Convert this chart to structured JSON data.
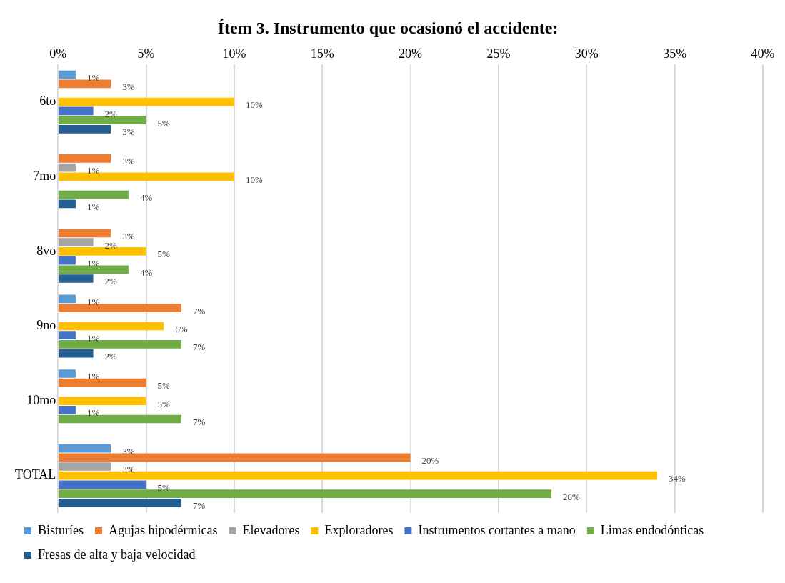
{
  "chart_data": {
    "type": "bar",
    "orientation": "horizontal",
    "title": "Ítem 3. Instrumento que ocasionó el accidente:",
    "categories": [
      "6to",
      "7mo",
      "8vo",
      "9no",
      "10mo",
      "TOTAL"
    ],
    "series": [
      {
        "name": "Bisturíes",
        "color": "#5b9bd5",
        "values": [
          1,
          null,
          null,
          1,
          1,
          3
        ],
        "value_labels": [
          "1%",
          null,
          null,
          "1%",
          "1%",
          "3%"
        ]
      },
      {
        "name": "Agujas hipodérmicas",
        "color": "#ed7d31",
        "values": [
          3,
          3,
          3,
          7,
          5,
          20
        ],
        "value_labels": [
          "3%",
          "3%",
          "3%",
          "7%",
          "5%",
          "20%"
        ]
      },
      {
        "name": "Elevadores",
        "color": "#a5a5a5",
        "values": [
          null,
          1,
          2,
          null,
          null,
          3
        ],
        "value_labels": [
          null,
          "1%",
          "2%",
          null,
          null,
          "3%"
        ]
      },
      {
        "name": "Exploradores",
        "color": "#ffc000",
        "values": [
          10,
          10,
          5,
          6,
          5,
          34
        ],
        "value_labels": [
          "10%",
          "10%",
          "5%",
          "6%",
          "5%",
          "34%"
        ]
      },
      {
        "name": "Instrumentos cortantes a mano",
        "color": "#4472c4",
        "values": [
          2,
          null,
          1,
          1,
          1,
          5
        ],
        "value_labels": [
          "2%",
          null,
          "1%",
          "1%",
          "1%",
          "5%"
        ]
      },
      {
        "name": "Limas endodónticas",
        "color": "#70ad47",
        "values": [
          5,
          4,
          4,
          7,
          7,
          28
        ],
        "value_labels": [
          "5%",
          "4%",
          "4%",
          "7%",
          "7%",
          "28%"
        ]
      },
      {
        "name": "Fresas de alta y baja velocidad",
        "color": "#255e91",
        "values": [
          3,
          1,
          2,
          2,
          null,
          7
        ],
        "value_labels": [
          "3%",
          "1%",
          "2%",
          "2%",
          null,
          "7%"
        ]
      }
    ],
    "xlim": [
      0,
      40
    ],
    "xticks": [
      {
        "value": 0,
        "label": "0%"
      },
      {
        "value": 5,
        "label": "5%"
      },
      {
        "value": 10,
        "label": "10%"
      },
      {
        "value": 15,
        "label": "15%"
      },
      {
        "value": 20,
        "label": "20%"
      },
      {
        "value": 25,
        "label": "25%"
      },
      {
        "value": 30,
        "label": "30%"
      },
      {
        "value": 35,
        "label": "35%"
      },
      {
        "value": 40,
        "label": "40%"
      }
    ],
    "grid": "x",
    "legend": "bottom"
  }
}
